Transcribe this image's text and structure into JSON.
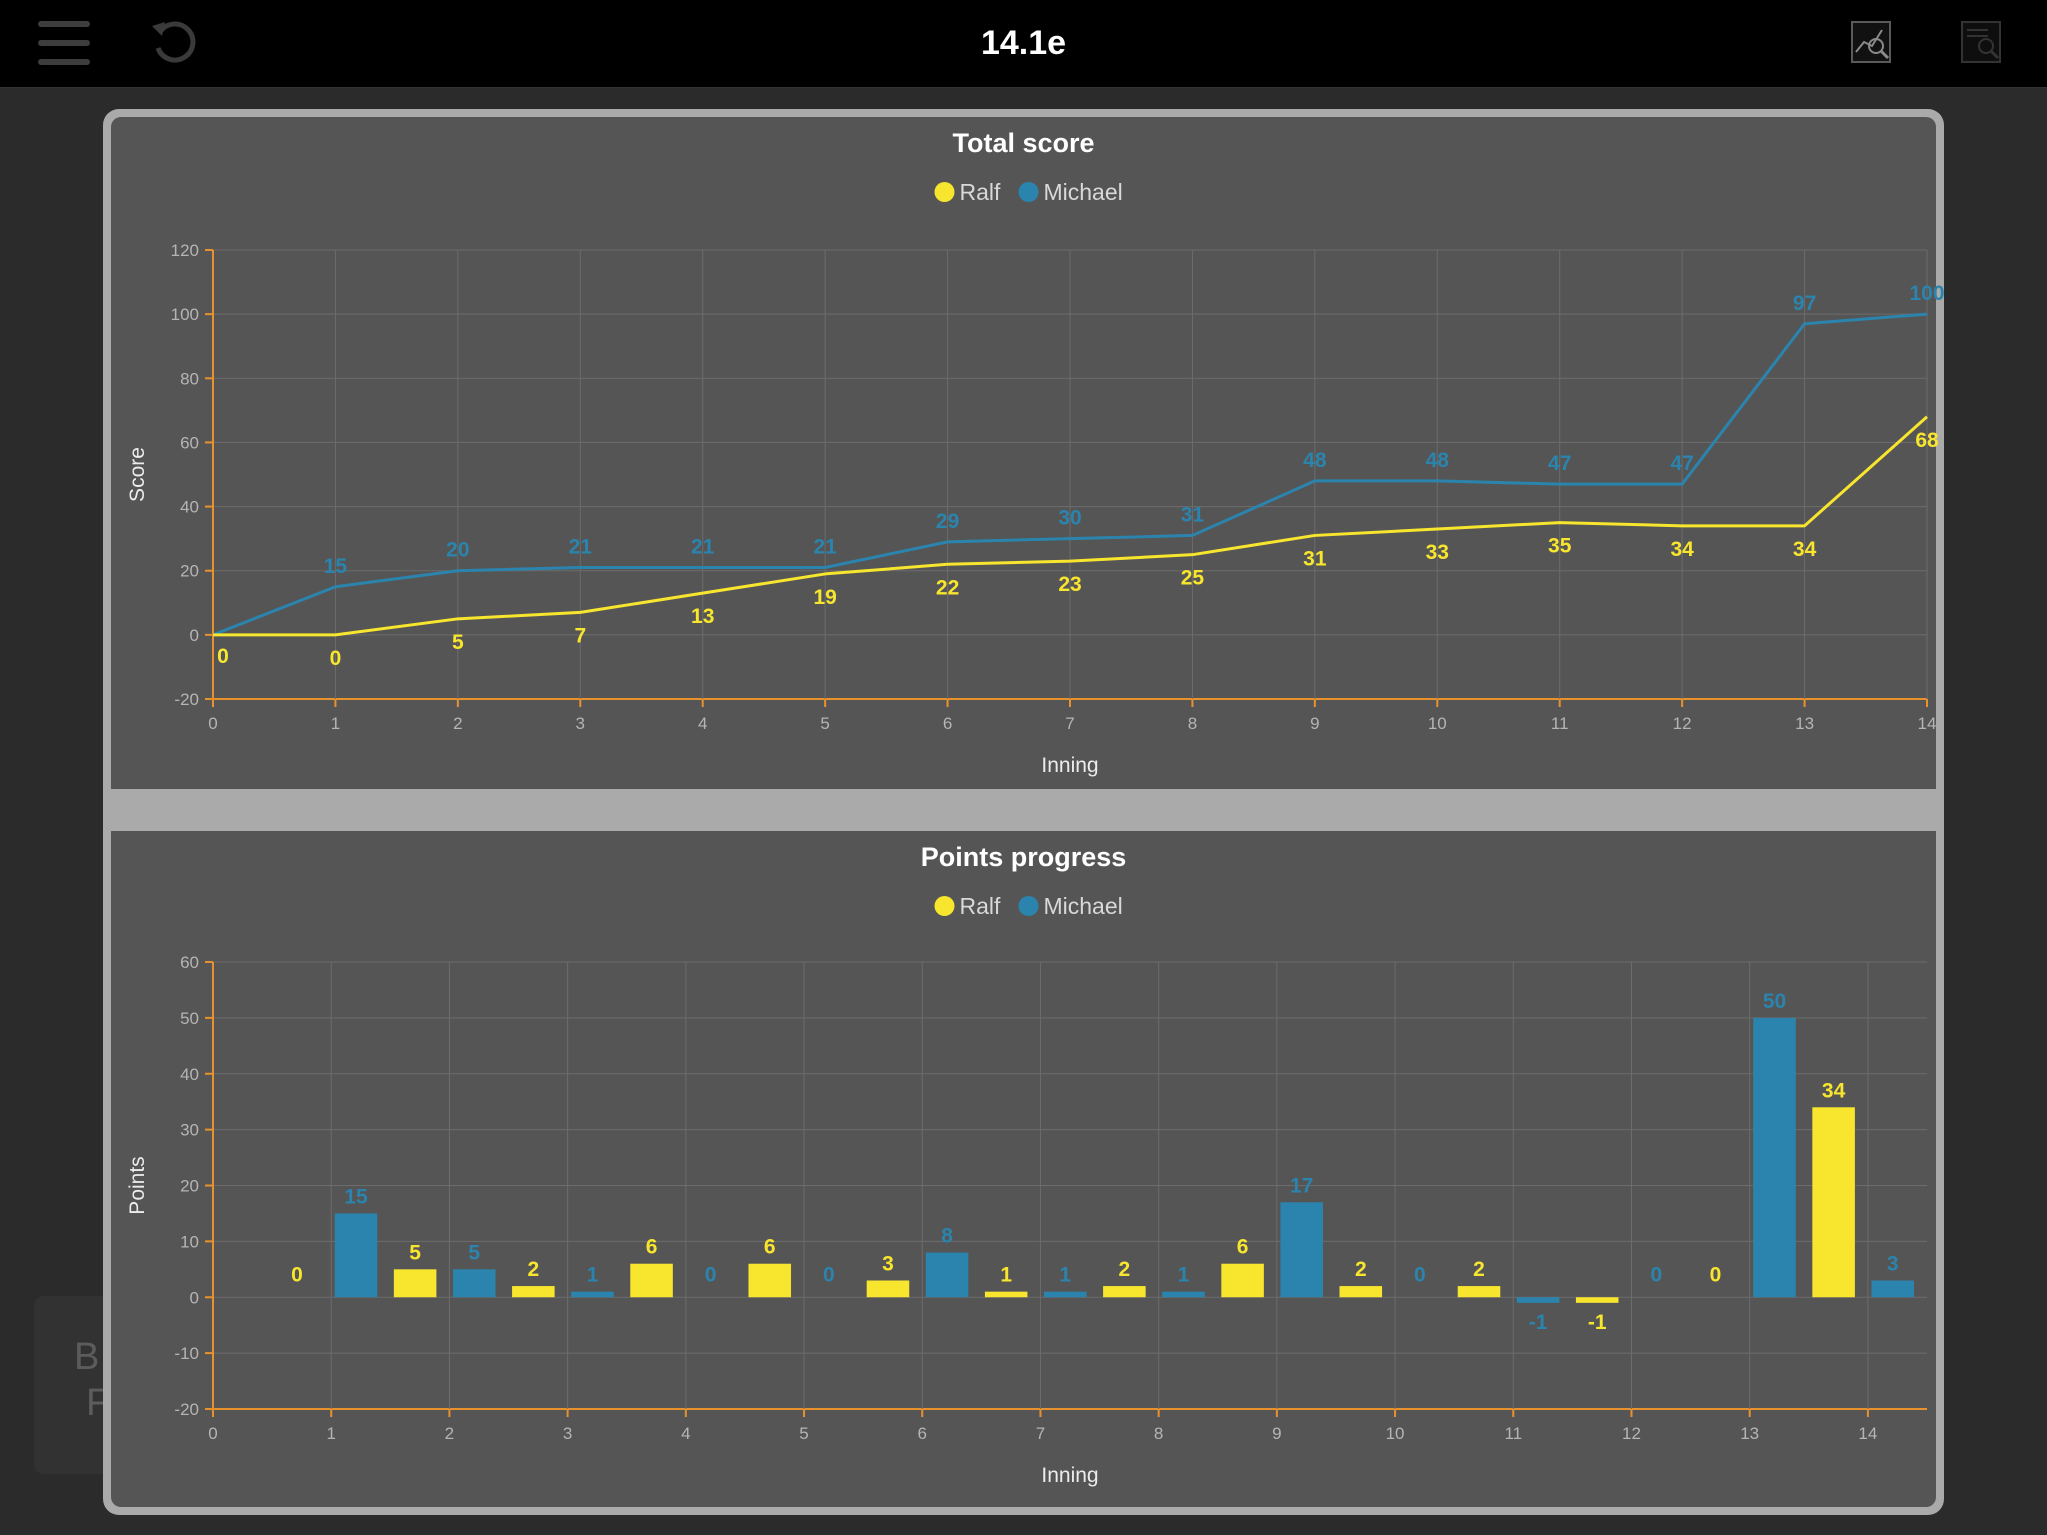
{
  "app": {
    "title": "14.1e"
  },
  "background": {
    "line1": "B",
    "line2": "F"
  },
  "colors": {
    "ralf": "#f7e52e",
    "michael": "#2b84ad",
    "axis": "#e8922e",
    "grid": "#6c6c6c"
  },
  "toolbar": {
    "menu_icon": "hamburger-menu-icon",
    "undo_icon": "undo-icon",
    "chart_icon": "chart-search-icon",
    "doc_icon": "document-search-icon"
  },
  "chart_data": [
    {
      "type": "line",
      "title": "Total score",
      "xlabel": "Inning",
      "ylabel": "Score",
      "legend": [
        "Ralf",
        "Michael"
      ],
      "legend_position": "top-center",
      "grid": true,
      "xlim": [
        0,
        14
      ],
      "ylim": [
        -20,
        120
      ],
      "xticks": [
        0,
        1,
        2,
        3,
        4,
        5,
        6,
        7,
        8,
        9,
        10,
        11,
        12,
        13,
        14
      ],
      "yticks": [
        -20,
        0,
        20,
        40,
        60,
        80,
        100,
        120
      ],
      "x": [
        0,
        1,
        2,
        3,
        4,
        5,
        6,
        7,
        8,
        9,
        10,
        11,
        12,
        13,
        14
      ],
      "series": [
        {
          "name": "Ralf",
          "values": [
            0,
            0,
            5,
            7,
            13,
            19,
            22,
            23,
            25,
            31,
            33,
            35,
            34,
            34,
            68
          ]
        },
        {
          "name": "Michael",
          "values": [
            0,
            15,
            20,
            21,
            21,
            21,
            29,
            30,
            31,
            48,
            48,
            47,
            47,
            97,
            100
          ]
        }
      ]
    },
    {
      "type": "bar",
      "title": "Points progress",
      "xlabel": "Inning",
      "ylabel": "Points",
      "legend": [
        "Ralf",
        "Michael"
      ],
      "legend_position": "top-center",
      "grid": true,
      "xlim": [
        0,
        14.5
      ],
      "ylim": [
        -20,
        60
      ],
      "xticks": [
        0,
        1,
        2,
        3,
        4,
        5,
        6,
        7,
        8,
        9,
        10,
        11,
        12,
        13,
        14
      ],
      "yticks": [
        -20,
        -10,
        0,
        10,
        20,
        30,
        40,
        50,
        60
      ],
      "categories": [
        1,
        2,
        3,
        4,
        5,
        6,
        7,
        8,
        9,
        10,
        11,
        12,
        13,
        14
      ],
      "series": [
        {
          "name": "Ralf",
          "values": [
            0,
            5,
            2,
            6,
            6,
            3,
            1,
            2,
            6,
            2,
            2,
            -1,
            0,
            34
          ]
        },
        {
          "name": "Michael",
          "values": [
            15,
            5,
            1,
            0,
            0,
            8,
            1,
            1,
            17,
            0,
            -1,
            0,
            50,
            3
          ]
        }
      ]
    }
  ]
}
